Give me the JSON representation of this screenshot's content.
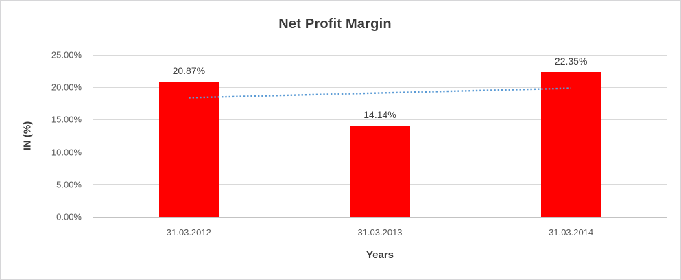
{
  "chart_data": {
    "type": "bar",
    "title": "Net Profit Margin",
    "xlabel": "Years",
    "ylabel": "IN (%)",
    "categories": [
      "31.03.2012",
      "31.03.2013",
      "31.03.2014"
    ],
    "values": [
      20.87,
      14.14,
      22.35
    ],
    "data_labels": [
      "20.87%",
      "14.14%",
      "22.35%"
    ],
    "ylim": [
      0,
      25
    ],
    "y_tick_values": [
      25,
      20,
      15,
      10,
      5,
      0
    ],
    "y_tick_labels": [
      "25.00%",
      "20.00%",
      "15.00%",
      "10.00%",
      "5.00%",
      "0.00%"
    ],
    "grid": true,
    "legend_position": "none",
    "bar_color": "#ff0000",
    "trendline": {
      "type": "linear",
      "style": "dotted",
      "color": "#5b9bd5",
      "start_value": 18.38,
      "end_value": 19.86
    }
  }
}
